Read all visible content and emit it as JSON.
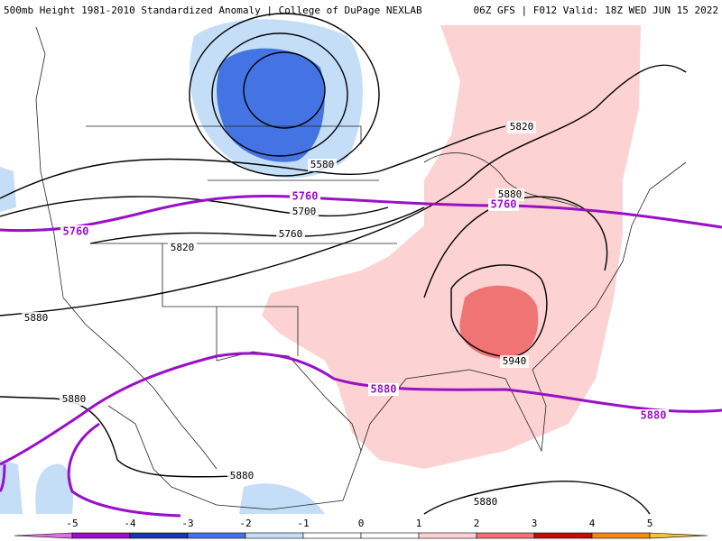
{
  "header": {
    "left": "500mb Height 1981-2010 Standardized Anomaly | College of DuPage NEXLAB",
    "right": "06Z GFS | F012 Valid: 18Z WED JUN 15 2022"
  },
  "height_contours": [
    "5580",
    "5700",
    "5760",
    "5820",
    "5820",
    "5880",
    "5880",
    "5880",
    "5880",
    "5880",
    "5940"
  ],
  "purple_contours": [
    "5760",
    "5760",
    "5760",
    "5880",
    "5880"
  ],
  "colorbar": {
    "ticks": [
      "-5",
      "-4",
      "-3",
      "-2",
      "-1",
      "0",
      "1",
      "2",
      "3",
      "4",
      "5"
    ],
    "colors": [
      "#e070e0",
      "#9a10c8",
      "#1838b0",
      "#4474e4",
      "#c4def8",
      "#ffffff",
      "#ffffff",
      "#fcd2d2",
      "#f07474",
      "#c80a0a",
      "#f08c10",
      "#f4c040"
    ]
  }
}
